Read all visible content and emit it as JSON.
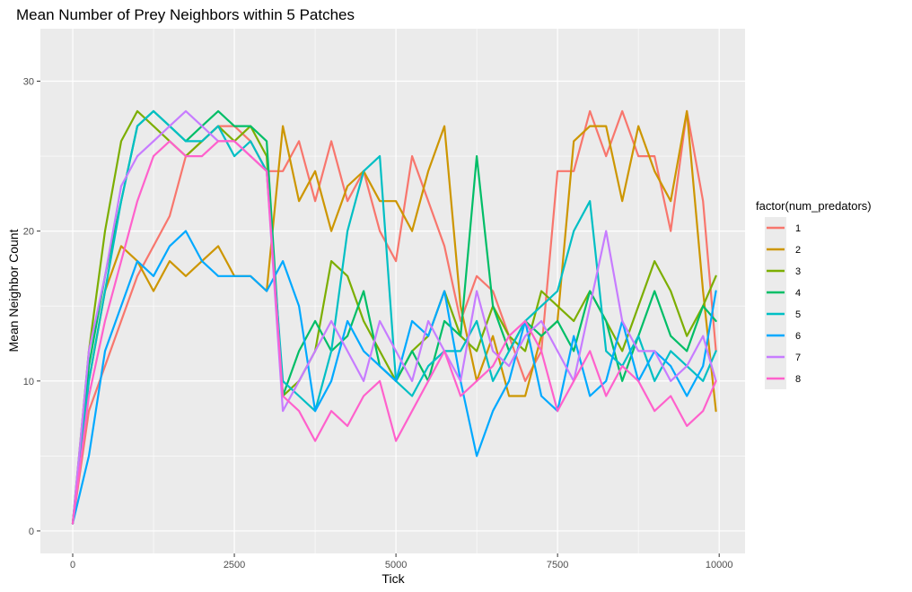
{
  "chart_data": {
    "type": "line",
    "title": "Mean Number of Prey Neighbors within 5 Patches",
    "xlabel": "Tick",
    "ylabel": "Mean Neighbor Count",
    "xlim": [
      -500,
      10400
    ],
    "ylim": [
      -1.5,
      33.5
    ],
    "x_ticks": [
      0,
      2500,
      5000,
      7500,
      10000
    ],
    "x_tick_labels": [
      "0",
      "2500",
      "5000",
      "7500",
      "10000"
    ],
    "y_ticks": [
      0,
      10,
      20,
      30
    ],
    "y_tick_labels": [
      "0",
      "10",
      "20",
      "30"
    ],
    "grid": true,
    "legend_title": "factor(num_predators)",
    "legend_position": "right",
    "series": [
      {
        "name": "1",
        "color": "#F8766D",
        "x": [
          0,
          250,
          500,
          750,
          1000,
          1250,
          1500,
          1750,
          2000,
          2250,
          2500,
          2750,
          3000,
          3250,
          3500,
          3750,
          4000,
          4250,
          4500,
          4750,
          5000,
          5250,
          5500,
          5750,
          6000,
          6250,
          6500,
          6750,
          7000,
          7250,
          7500,
          7750,
          8000,
          8250,
          8500,
          8750,
          9000,
          9250,
          9500,
          9750,
          9950
        ],
        "y": [
          0.5,
          8,
          11,
          14,
          17,
          19,
          21,
          25,
          26,
          27,
          27,
          26,
          24,
          24,
          26,
          22,
          26,
          22,
          24,
          20,
          18,
          25,
          22,
          19,
          14,
          17,
          16,
          13,
          10,
          12,
          24,
          24,
          28,
          25,
          28,
          25,
          25,
          20,
          28,
          22,
          12
        ]
      },
      {
        "name": "2",
        "color": "#CD9600",
        "x": [
          0,
          250,
          500,
          750,
          1000,
          1250,
          1500,
          1750,
          2000,
          2250,
          2500,
          2750,
          3000,
          3250,
          3500,
          3750,
          4000,
          4250,
          4500,
          4750,
          5000,
          5250,
          5500,
          5750,
          6000,
          6250,
          6500,
          6750,
          7000,
          7250,
          7500,
          7750,
          8000,
          8250,
          8500,
          8750,
          9000,
          9250,
          9500,
          9750,
          9950
        ],
        "y": [
          0.5,
          10,
          16,
          19,
          18,
          16,
          18,
          17,
          18,
          19,
          17,
          17,
          16,
          27,
          22,
          24,
          20,
          23,
          24,
          22,
          22,
          20,
          24,
          27,
          15,
          10,
          13,
          9,
          9,
          13,
          14,
          26,
          27,
          27,
          22,
          27,
          24,
          22,
          28,
          16,
          8
        ]
      },
      {
        "name": "3",
        "color": "#7CAE00",
        "x": [
          0,
          250,
          500,
          750,
          1000,
          1250,
          1500,
          1750,
          2000,
          2250,
          2500,
          2750,
          3000,
          3250,
          3500,
          3750,
          4000,
          4250,
          4500,
          4750,
          5000,
          5250,
          5500,
          5750,
          6000,
          6250,
          6500,
          6750,
          7000,
          7250,
          7500,
          7750,
          8000,
          8250,
          8500,
          8750,
          9000,
          9250,
          9500,
          9750,
          9950
        ],
        "y": [
          0.5,
          12,
          20,
          26,
          28,
          27,
          26,
          25,
          26,
          27,
          26,
          27,
          25,
          9,
          10,
          12,
          18,
          17,
          14,
          12,
          10,
          12,
          13,
          16,
          13,
          12,
          15,
          13,
          12,
          16,
          15,
          14,
          16,
          14,
          12,
          15,
          18,
          16,
          13,
          15,
          17
        ]
      },
      {
        "name": "4",
        "color": "#00BE67",
        "x": [
          0,
          250,
          500,
          750,
          1000,
          1250,
          1500,
          1750,
          2000,
          2250,
          2500,
          2750,
          3000,
          3250,
          3500,
          3750,
          4000,
          4250,
          4500,
          4750,
          5000,
          5250,
          5500,
          5750,
          6000,
          6250,
          6500,
          6750,
          7000,
          7250,
          7500,
          7750,
          8000,
          8250,
          8500,
          8750,
          9000,
          9250,
          9500,
          9750,
          9950
        ],
        "y": [
          0.5,
          11,
          17,
          22,
          27,
          28,
          27,
          26,
          27,
          28,
          27,
          27,
          26,
          9,
          12,
          14,
          12,
          13,
          16,
          11,
          10,
          12,
          10,
          14,
          13,
          25,
          15,
          12,
          14,
          13,
          14,
          12,
          16,
          14,
          10,
          13,
          16,
          13,
          12,
          15,
          14
        ]
      },
      {
        "name": "5",
        "color": "#00BFC4",
        "x": [
          0,
          250,
          500,
          750,
          1000,
          1250,
          1500,
          1750,
          2000,
          2250,
          2500,
          2750,
          3000,
          3250,
          3500,
          3750,
          4000,
          4250,
          4500,
          4750,
          5000,
          5250,
          5500,
          5750,
          6000,
          6250,
          6500,
          6750,
          7000,
          7250,
          7500,
          7750,
          8000,
          8250,
          8500,
          8750,
          9000,
          9250,
          9500,
          9750,
          9950
        ],
        "y": [
          0.5,
          10,
          16,
          22,
          27,
          28,
          27,
          26,
          26,
          27,
          25,
          26,
          24,
          10,
          9,
          8,
          12,
          20,
          24,
          25,
          10,
          9,
          11,
          12,
          12,
          14,
          10,
          12,
          14,
          15,
          16,
          20,
          22,
          12,
          11,
          13,
          10,
          12,
          11,
          10,
          12
        ]
      },
      {
        "name": "6",
        "color": "#00A9FF",
        "x": [
          0,
          250,
          500,
          750,
          1000,
          1250,
          1500,
          1750,
          2000,
          2250,
          2500,
          2750,
          3000,
          3250,
          3500,
          3750,
          4000,
          4250,
          4500,
          4750,
          5000,
          5250,
          5500,
          5750,
          6000,
          6250,
          6500,
          6750,
          7000,
          7250,
          7500,
          7750,
          8000,
          8250,
          8500,
          8750,
          9000,
          9250,
          9500,
          9750,
          9950
        ],
        "y": [
          0.5,
          5,
          12,
          15,
          18,
          17,
          19,
          20,
          18,
          17,
          17,
          17,
          16,
          18,
          15,
          8,
          10,
          14,
          12,
          11,
          10,
          14,
          13,
          16,
          10,
          5,
          8,
          10,
          14,
          9,
          8,
          13,
          9,
          10,
          14,
          10,
          12,
          11,
          9,
          11,
          16
        ]
      },
      {
        "name": "7",
        "color": "#C77CFF",
        "x": [
          0,
          250,
          500,
          750,
          1000,
          1250,
          1500,
          1750,
          2000,
          2250,
          2500,
          2750,
          3000,
          3250,
          3500,
          3750,
          4000,
          4250,
          4500,
          4750,
          5000,
          5250,
          5500,
          5750,
          6000,
          6250,
          6500,
          6750,
          7000,
          7250,
          7500,
          7750,
          8000,
          8250,
          8500,
          8750,
          9000,
          9250,
          9500,
          9750,
          9950
        ],
        "y": [
          0.5,
          12,
          17,
          23,
          25,
          26,
          27,
          28,
          27,
          26,
          26,
          25,
          24,
          8,
          10,
          12,
          14,
          12,
          10,
          14,
          12,
          10,
          14,
          12,
          10,
          16,
          12,
          11,
          13,
          14,
          12,
          10,
          15,
          20,
          14,
          12,
          12,
          10,
          11,
          13,
          10
        ]
      },
      {
        "name": "8",
        "color": "#FF61CC",
        "x": [
          0,
          250,
          500,
          750,
          1000,
          1250,
          1500,
          1750,
          2000,
          2250,
          2500,
          2750,
          3000,
          3250,
          3500,
          3750,
          4000,
          4250,
          4500,
          4750,
          5000,
          5250,
          5500,
          5750,
          6000,
          6250,
          6500,
          6750,
          7000,
          7250,
          7500,
          7750,
          8000,
          8250,
          8500,
          8750,
          9000,
          9250,
          9500,
          9750,
          9950
        ],
        "y": [
          0.5,
          9,
          14,
          18,
          22,
          25,
          26,
          25,
          25,
          26,
          26,
          25,
          24,
          9,
          8,
          6,
          8,
          7,
          9,
          10,
          6,
          8,
          10,
          12,
          9,
          10,
          11,
          13,
          14,
          12,
          8,
          10,
          12,
          9,
          11,
          10,
          8,
          9,
          7,
          8,
          10
        ]
      }
    ]
  }
}
